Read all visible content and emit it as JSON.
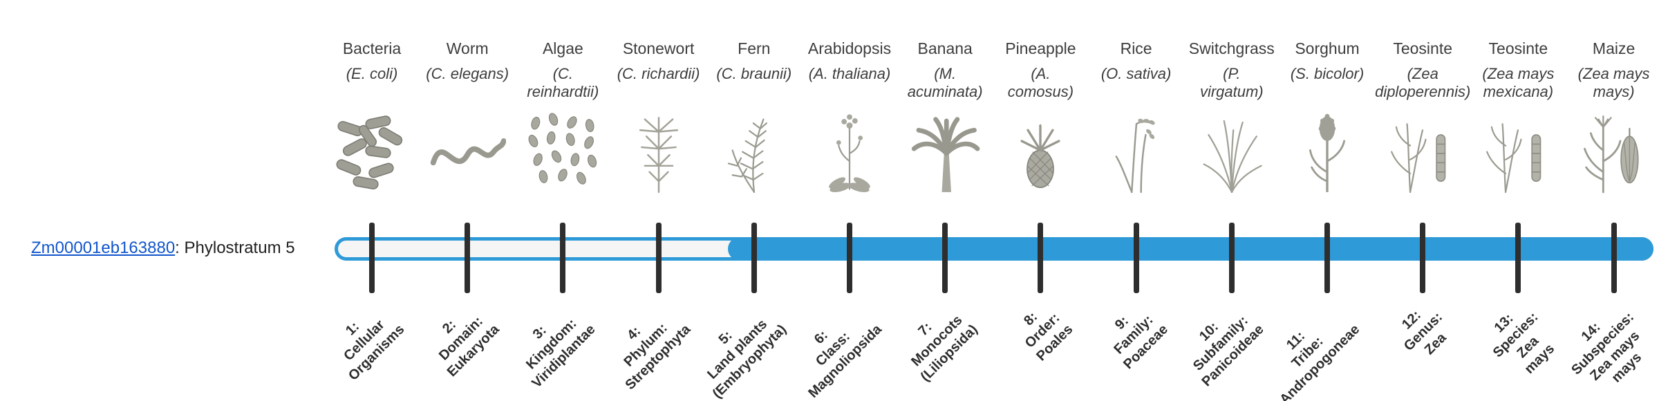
{
  "gene": {
    "id": "Zm00001eb163880",
    "annotation": ": Phylostratum 5"
  },
  "highlight": {
    "phylostratum": 5
  },
  "colors": {
    "bar_blue": "#2e9ad8",
    "tick_dark": "#2e2e2e",
    "link_blue": "#1155cc",
    "unfilled": "#f5f5f5",
    "illustration_gray": "#9b9b91"
  },
  "strata": [
    {
      "index": 1,
      "organism": "Bacteria",
      "scientific": "(E. coli)",
      "icon": "bacteria-icon",
      "tick_label": "1:\nCellular\nOrganisms"
    },
    {
      "index": 2,
      "organism": "Worm",
      "scientific": "(C. elegans)",
      "icon": "worm-icon",
      "tick_label": "2:\nDomain:\nEukaryota"
    },
    {
      "index": 3,
      "organism": "Algae",
      "scientific": "(C.\nreinhardtii)",
      "icon": "algae-icon",
      "tick_label": "3:\nKingdom:\nViridiplantae"
    },
    {
      "index": 4,
      "organism": "Stonewort",
      "scientific": "(C. richardii)",
      "icon": "stonewort-icon",
      "tick_label": "4:\nPhylum:\nStreptophyta"
    },
    {
      "index": 5,
      "organism": "Fern",
      "scientific": "(C. braunii)",
      "icon": "fern-icon",
      "tick_label": "5:\nLand plants\n(Embryophyta)"
    },
    {
      "index": 6,
      "organism": "Arabidopsis",
      "scientific": "(A. thaliana)",
      "icon": "arabidopsis-icon",
      "tick_label": "6:\nClass:\nMagnoliopsida"
    },
    {
      "index": 7,
      "organism": "Banana",
      "scientific": "(M.\nacuminata)",
      "icon": "banana-icon",
      "tick_label": "7:\nMonocots\n(Liliopsida)"
    },
    {
      "index": 8,
      "organism": "Pineapple",
      "scientific": "(A.\ncomosus)",
      "icon": "pineapple-icon",
      "tick_label": "8:\nOrder:\nPoales"
    },
    {
      "index": 9,
      "organism": "Rice",
      "scientific": "(O. sativa)",
      "icon": "rice-icon",
      "tick_label": "9:\nFamily:\nPoaceae"
    },
    {
      "index": 10,
      "organism": "Switchgrass",
      "scientific": "(P.\nvirgatum)",
      "icon": "switchgrass-icon",
      "tick_label": "10:\nSubfamily:\nPanicoideae"
    },
    {
      "index": 11,
      "organism": "Sorghum",
      "scientific": "(S. bicolor)",
      "icon": "sorghum-icon",
      "tick_label": "11:\nTribe:\nAndropogoneae"
    },
    {
      "index": 12,
      "organism": "Teosinte",
      "scientific": "(Zea\ndiploperennis)",
      "icon": "teosinte-icon",
      "tick_label": "12:\nGenus:\nZea"
    },
    {
      "index": 13,
      "organism": "Teosinte",
      "scientific": "(Zea mays\nmexicana)",
      "icon": "teosinte-icon",
      "tick_label": "13:\nSpecies:\nZea\nmays"
    },
    {
      "index": 14,
      "organism": "Maize",
      "scientific": "(Zea mays\nmays)",
      "icon": "maize-icon",
      "tick_label": "14:\nSubspecies:\nZea mays\nmays"
    }
  ]
}
